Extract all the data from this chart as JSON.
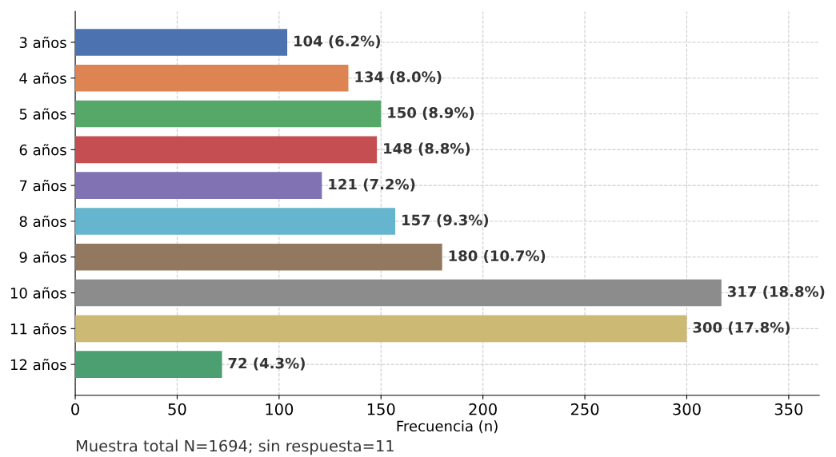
{
  "chart_data": {
    "type": "bar",
    "orientation": "horizontal",
    "xlabel": "Frecuencia (n)",
    "categories": [
      "3 años",
      "4 años",
      "5 años",
      "6 años",
      "7 años",
      "8 años",
      "9 años",
      "10 años",
      "11 años",
      "12 años"
    ],
    "values": [
      104,
      134,
      150,
      148,
      121,
      157,
      180,
      317,
      300,
      72
    ],
    "colors": [
      "#4c72b0",
      "#dd8452",
      "#55a868",
      "#c44e52",
      "#8172b3",
      "#64b5cd",
      "#937860",
      "#8c8c8c",
      "#ccb974",
      "#4c9f70"
    ],
    "value_labels": [
      "104 (6.2%)",
      "134 (8.0%)",
      "150 (8.9%)",
      "148 (8.8%)",
      "121 (7.2%)",
      "157 (9.3%)",
      "180 (10.7%)",
      "317 (18.8%)",
      "300 (17.8%)",
      "72 (4.3%)"
    ],
    "xlim": [
      0,
      365
    ],
    "xticks": [
      0,
      50,
      100,
      150,
      200,
      250,
      300,
      350
    ],
    "grid": true,
    "line_style": "dashed",
    "annotations": [
      "Muestra total N=1694; sin respuesta=11"
    ]
  }
}
